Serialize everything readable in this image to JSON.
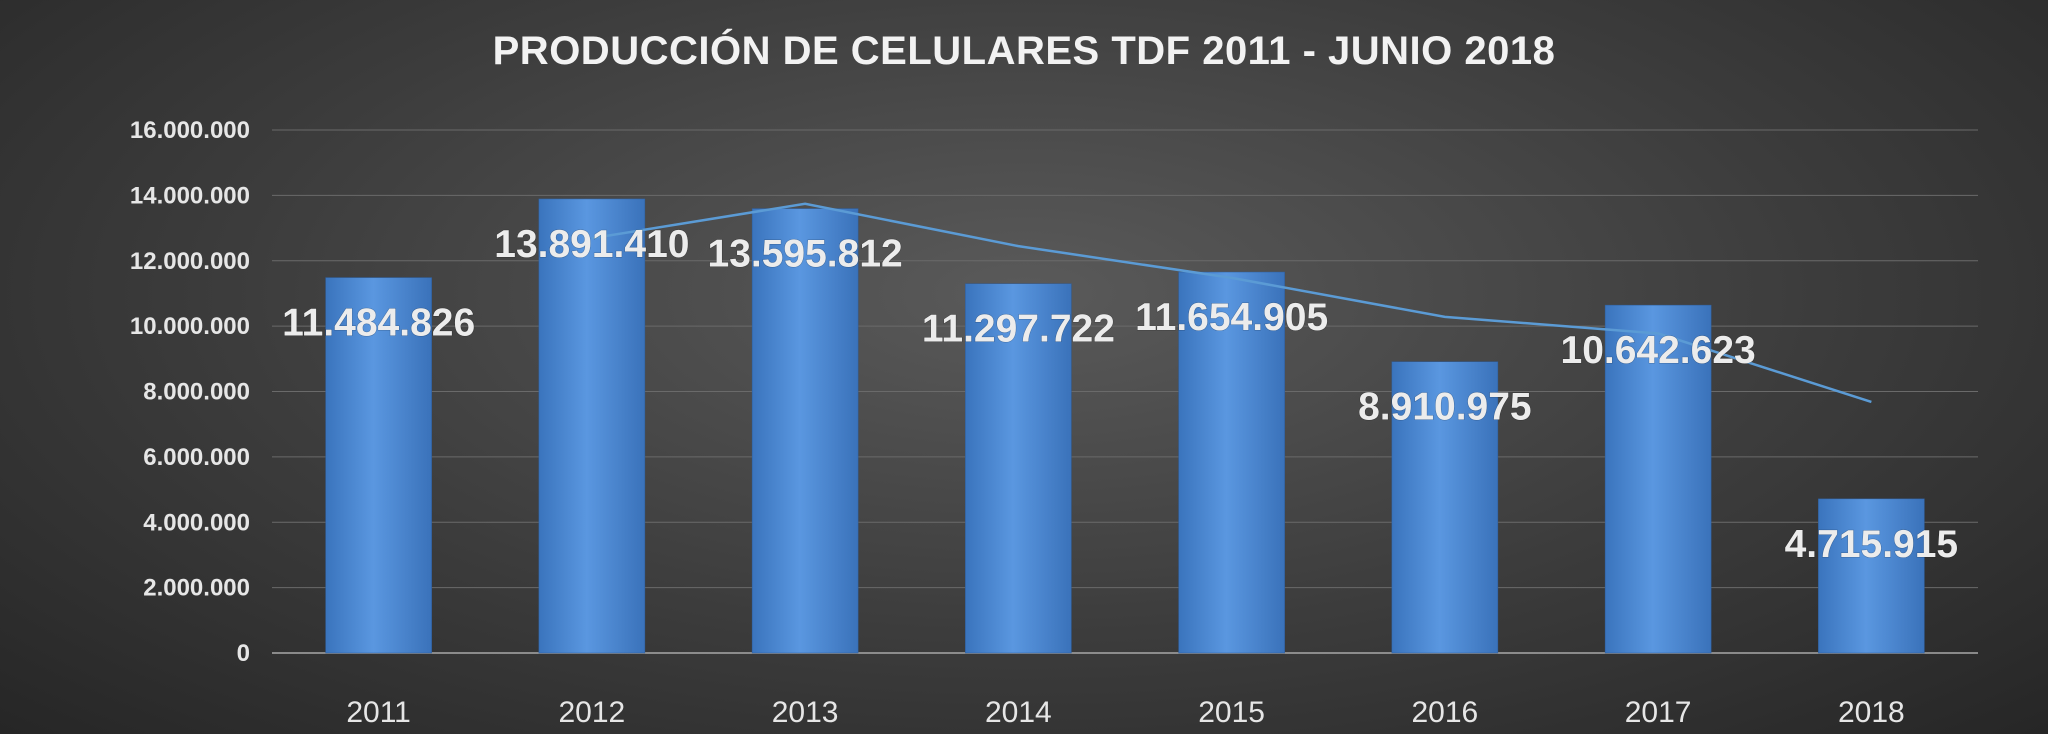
{
  "chart_data": {
    "type": "bar",
    "title": "PRODUCCIÓN DE CELULARES TDF 2011 - JUNIO 2018",
    "categories": [
      "2011",
      "2012",
      "2013",
      "2014",
      "2015",
      "2016",
      "2017",
      "2018"
    ],
    "values": [
      11484826,
      13891410,
      13595812,
      11297722,
      11654905,
      8910975,
      10642623,
      4715915
    ],
    "value_labels": [
      "11.484.826",
      "13.891.410",
      "13.595.812",
      "11.297.722",
      "11.654.905",
      "8.910.975",
      "10.642.623",
      "4.715.915"
    ],
    "trendline": {
      "type": "moving-average",
      "period": 2,
      "color": "#5b9bd5"
    },
    "ylim": [
      0,
      16000000
    ],
    "yticks": [
      0,
      2000000,
      4000000,
      6000000,
      8000000,
      10000000,
      12000000,
      14000000,
      16000000
    ],
    "ytick_labels": [
      "0",
      "2.000.000",
      "4.000.000",
      "6.000.000",
      "8.000.000",
      "10.000.000",
      "12.000.000",
      "14.000.000",
      "16.000.000"
    ],
    "xlabel": "",
    "ylabel": "",
    "grid": true,
    "legend": "none",
    "bar_color": "#4a86d0"
  }
}
